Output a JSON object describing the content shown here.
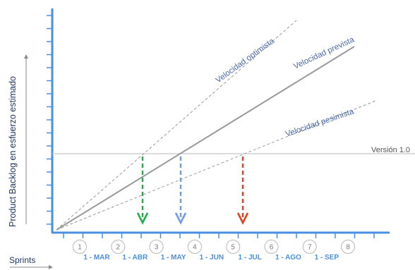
{
  "axes": {
    "y_label": "Product Backlog en esfuerzo estimado",
    "x_label": "Sprints"
  },
  "lines": {
    "optimistic": "Velocidad optimista",
    "expected": "Velocidad prevista",
    "pessimistic": "Velocidad pesimista"
  },
  "version_label": "Versión 1.0",
  "sprints": [
    "1",
    "2",
    "3",
    "4",
    "5",
    "6",
    "7",
    "8"
  ],
  "months": [
    "1 - MAR",
    "1 - ABR",
    "1 - MAY",
    "1 - JUN",
    "1 - JUL",
    "1 - AGO",
    "1 - SEP"
  ],
  "colors": {
    "axis": "#4a90e2",
    "expected_line": "#9a9a9a",
    "guide_line": "#9a9a9a",
    "version_line": "#c8c8c8",
    "optimistic_arrow": "#1fae4b",
    "expected_arrow": "#6f9ae8",
    "pessimistic_arrow": "#e8401c"
  }
}
